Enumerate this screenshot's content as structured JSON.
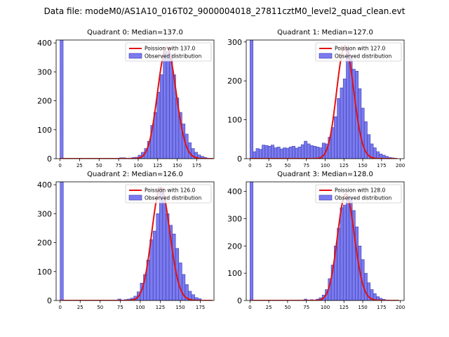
{
  "figure": {
    "suptitle": "Data file: modeM0/AS1A10_016T02_9000004018_27811cztM0_level2_quad_clean.evt"
  },
  "colors": {
    "hist_fill": "#7b7bef",
    "hist_edge": "#3a3ab0",
    "poisson_line": "#e41010",
    "axis": "#000000"
  },
  "chart_data": [
    {
      "type": "bar",
      "title": "Quadrant 0: Median=137.0",
      "xlim": [
        -5,
        197
      ],
      "ylim": [
        0,
        410
      ],
      "xticks": [
        0,
        25,
        50,
        75,
        100,
        125,
        150,
        175
      ],
      "yticks": [
        0,
        100,
        200,
        300,
        400
      ],
      "bin_width": 4,
      "series": [
        {
          "name": "Observed distribution",
          "bins": [
            [
              0,
              410
            ],
            [
              76,
              3
            ],
            [
              80,
              3
            ],
            [
              88,
              2
            ],
            [
              92,
              4
            ],
            [
              96,
              5
            ],
            [
              100,
              12
            ],
            [
              104,
              22
            ],
            [
              108,
              35
            ],
            [
              112,
              60
            ],
            [
              116,
              115
            ],
            [
              120,
              160
            ],
            [
              124,
              230
            ],
            [
              128,
              290
            ],
            [
              132,
              370
            ],
            [
              136,
              370
            ],
            [
              140,
              360
            ],
            [
              144,
              290
            ],
            [
              148,
              210
            ],
            [
              152,
              160
            ],
            [
              156,
              120
            ],
            [
              160,
              85
            ],
            [
              164,
              55
            ],
            [
              168,
              35
            ],
            [
              172,
              22
            ],
            [
              176,
              13
            ],
            [
              180,
              8
            ],
            [
              184,
              4
            ]
          ]
        },
        {
          "name": "Poission with 137.0",
          "type": "line",
          "lambda": 137.0,
          "peak": 385,
          "x_range": [
            0,
            196
          ]
        }
      ],
      "legend": {
        "position": "top-right",
        "entries": [
          "Poission with 137.0",
          "Observed distribution"
        ]
      }
    },
    {
      "type": "bar",
      "title": "Quadrant 1: Median=127.0",
      "xlim": [
        -5,
        205
      ],
      "ylim": [
        0,
        305
      ],
      "xticks": [
        0,
        25,
        50,
        75,
        100,
        125,
        150,
        175,
        200
      ],
      "yticks": [
        0,
        100,
        200,
        300
      ],
      "bin_width": 4,
      "series": [
        {
          "name": "Observed distribution",
          "bins": [
            [
              0,
              305
            ],
            [
              4,
              18
            ],
            [
              8,
              26
            ],
            [
              12,
              24
            ],
            [
              16,
              35
            ],
            [
              20,
              34
            ],
            [
              24,
              32
            ],
            [
              28,
              35
            ],
            [
              32,
              28
            ],
            [
              36,
              30
            ],
            [
              40,
              25
            ],
            [
              44,
              28
            ],
            [
              48,
              27
            ],
            [
              52,
              30
            ],
            [
              56,
              32
            ],
            [
              60,
              27
            ],
            [
              64,
              30
            ],
            [
              68,
              36
            ],
            [
              72,
              45
            ],
            [
              76,
              38
            ],
            [
              80,
              34
            ],
            [
              84,
              32
            ],
            [
              88,
              30
            ],
            [
              92,
              28
            ],
            [
              96,
              40
            ],
            [
              100,
              38
            ],
            [
              104,
              55
            ],
            [
              108,
              80
            ],
            [
              112,
              108
            ],
            [
              116,
              155
            ],
            [
              120,
              182
            ],
            [
              124,
              205
            ],
            [
              128,
              285
            ],
            [
              132,
              265
            ],
            [
              136,
              230
            ],
            [
              140,
              225
            ],
            [
              144,
              180
            ],
            [
              148,
              130
            ],
            [
              152,
              95
            ],
            [
              156,
              62
            ],
            [
              160,
              38
            ],
            [
              164,
              28
            ],
            [
              168,
              18
            ],
            [
              172,
              12
            ],
            [
              176,
              9
            ],
            [
              180,
              6
            ],
            [
              184,
              3
            ],
            [
              188,
              2
            ]
          ]
        },
        {
          "name": "Poission with 127.0",
          "type": "line",
          "lambda": 127.0,
          "peak": 290,
          "x_range": [
            0,
            196
          ]
        }
      ],
      "legend": {
        "position": "top-right",
        "entries": [
          "Poission with 127.0",
          "Observed distribution"
        ]
      }
    },
    {
      "type": "bar",
      "title": "Quadrant 2: Median=126.0",
      "xlim": [
        -5,
        192
      ],
      "ylim": [
        0,
        410
      ],
      "xticks": [
        0,
        25,
        50,
        75,
        100,
        125,
        150,
        175
      ],
      "yticks": [
        0,
        100,
        200,
        300,
        400
      ],
      "bin_width": 4,
      "series": [
        {
          "name": "Observed distribution",
          "bins": [
            [
              0,
              410
            ],
            [
              72,
              5
            ],
            [
              80,
              3
            ],
            [
              84,
              5
            ],
            [
              88,
              8
            ],
            [
              92,
              15
            ],
            [
              96,
              30
            ],
            [
              100,
              60
            ],
            [
              104,
              90
            ],
            [
              108,
              140
            ],
            [
              112,
              210
            ],
            [
              116,
              240
            ],
            [
              120,
              300
            ],
            [
              124,
              390
            ],
            [
              128,
              345
            ],
            [
              132,
              300
            ],
            [
              136,
              260
            ],
            [
              140,
              230
            ],
            [
              144,
              180
            ],
            [
              148,
              130
            ],
            [
              152,
              90
            ],
            [
              156,
              55
            ],
            [
              160,
              32
            ],
            [
              164,
              20
            ],
            [
              168,
              10
            ],
            [
              172,
              6
            ]
          ]
        },
        {
          "name": "Poission with 126.0",
          "type": "line",
          "lambda": 126.0,
          "peak": 390,
          "x_range": [
            0,
            190
          ]
        }
      ],
      "legend": {
        "position": "top-right",
        "entries": [
          "Poission with 126.0",
          "Observed distribution"
        ]
      }
    },
    {
      "type": "bar",
      "title": "Quadrant 3: Median=128.0",
      "xlim": [
        -5,
        205
      ],
      "ylim": [
        0,
        435
      ],
      "xticks": [
        0,
        25,
        50,
        75,
        100,
        125,
        150,
        175,
        200
      ],
      "yticks": [
        0,
        100,
        200,
        300,
        400
      ],
      "bin_width": 4,
      "series": [
        {
          "name": "Observed distribution",
          "bins": [
            [
              0,
              435
            ],
            [
              72,
              5
            ],
            [
              80,
              3
            ],
            [
              88,
              5
            ],
            [
              92,
              10
            ],
            [
              96,
              20
            ],
            [
              100,
              40
            ],
            [
              104,
              80
            ],
            [
              108,
              130
            ],
            [
              112,
              200
            ],
            [
              116,
              265
            ],
            [
              120,
              340
            ],
            [
              124,
              350
            ],
            [
              128,
              370
            ],
            [
              132,
              380
            ],
            [
              136,
              330
            ],
            [
              140,
              270
            ],
            [
              144,
              200
            ],
            [
              148,
              150
            ],
            [
              152,
              100
            ],
            [
              156,
              65
            ],
            [
              160,
              40
            ],
            [
              164,
              25
            ],
            [
              168,
              14
            ],
            [
              172,
              8
            ],
            [
              176,
              4
            ],
            [
              180,
              2
            ]
          ]
        },
        {
          "name": "Poission with 128.0",
          "type": "line",
          "lambda": 128.0,
          "peak": 390,
          "x_range": [
            0,
            198
          ]
        }
      ],
      "legend": {
        "position": "top-right",
        "entries": [
          "Poission with 128.0",
          "Observed distribution"
        ]
      }
    }
  ]
}
